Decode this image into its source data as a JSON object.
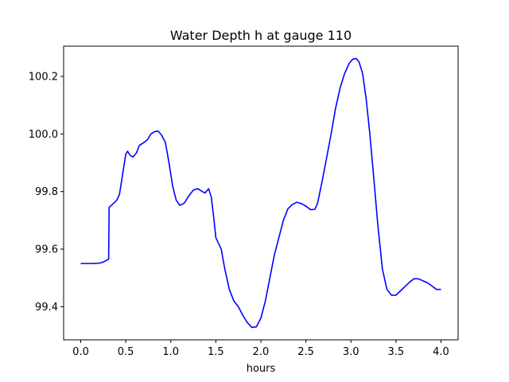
{
  "chart_data": {
    "type": "line",
    "title": "Water Depth h at gauge 110",
    "xlabel": "hours",
    "ylabel": "",
    "xlim": [
      -0.19,
      4.19
    ],
    "ylim": [
      99.285,
      100.305
    ],
    "xticks": [
      0.0,
      0.5,
      1.0,
      1.5,
      2.0,
      2.5,
      3.0,
      3.5,
      4.0
    ],
    "xtick_labels": [
      "0.0",
      "0.5",
      "1.0",
      "1.5",
      "2.0",
      "2.5",
      "3.0",
      "3.5",
      "4.0"
    ],
    "yticks": [
      99.4,
      99.6,
      99.8,
      100.0,
      100.2
    ],
    "ytick_labels": [
      "99.4",
      "99.6",
      "99.8",
      "100.0",
      "100.2"
    ],
    "grid": false,
    "series": [
      {
        "color": "#0000ff",
        "x": [
          0.0,
          0.1,
          0.2,
          0.25,
          0.31,
          0.315,
          0.35,
          0.4,
          0.43,
          0.46,
          0.5,
          0.52,
          0.55,
          0.58,
          0.62,
          0.65,
          0.7,
          0.74,
          0.78,
          0.82,
          0.86,
          0.9,
          0.94,
          0.98,
          1.02,
          1.06,
          1.1,
          1.15,
          1.2,
          1.25,
          1.3,
          1.35,
          1.38,
          1.42,
          1.45,
          1.48,
          1.5,
          1.53,
          1.56,
          1.6,
          1.65,
          1.7,
          1.75,
          1.8,
          1.85,
          1.9,
          1.95,
          2.0,
          2.05,
          2.1,
          2.15,
          2.2,
          2.25,
          2.3,
          2.35,
          2.4,
          2.45,
          2.48,
          2.52,
          2.55,
          2.6,
          2.63,
          2.67,
          2.72,
          2.78,
          2.83,
          2.88,
          2.93,
          2.98,
          3.02,
          3.06,
          3.09,
          3.13,
          3.17,
          3.21,
          3.25,
          3.3,
          3.35,
          3.4,
          3.45,
          3.5,
          3.55,
          3.6,
          3.65,
          3.7,
          3.75,
          3.8,
          3.85,
          3.9,
          3.95,
          4.0
        ],
        "values": [
          99.55,
          99.55,
          99.551,
          99.555,
          99.565,
          99.745,
          99.755,
          99.77,
          99.79,
          99.85,
          99.93,
          99.94,
          99.925,
          99.92,
          99.935,
          99.96,
          99.97,
          99.98,
          100.0,
          100.008,
          100.01,
          99.995,
          99.97,
          99.9,
          99.82,
          99.77,
          99.752,
          99.76,
          99.785,
          99.805,
          99.81,
          99.8,
          99.795,
          99.81,
          99.78,
          99.7,
          99.64,
          99.62,
          99.6,
          99.53,
          99.46,
          99.42,
          99.4,
          99.37,
          99.345,
          99.328,
          99.33,
          99.36,
          99.42,
          99.5,
          99.58,
          99.64,
          99.7,
          99.74,
          99.755,
          99.763,
          99.758,
          99.753,
          99.745,
          99.737,
          99.738,
          99.76,
          99.82,
          99.9,
          100.0,
          100.09,
          100.16,
          100.21,
          100.245,
          100.26,
          100.262,
          100.25,
          100.21,
          100.12,
          100.0,
          99.86,
          99.68,
          99.53,
          99.46,
          99.44,
          99.44,
          99.455,
          99.47,
          99.485,
          99.497,
          99.497,
          99.49,
          99.483,
          99.472,
          99.46,
          99.46
        ]
      }
    ]
  }
}
